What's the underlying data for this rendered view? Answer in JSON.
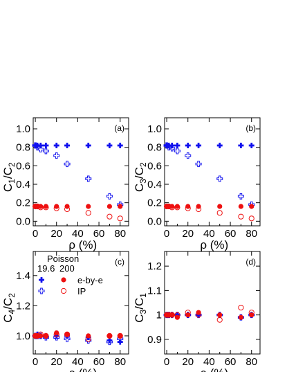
{
  "colors": {
    "blue": "#1010ee",
    "red": "#ee1010"
  },
  "legend": {
    "title": "Poisson",
    "col_left": "19.6",
    "col_right": "200",
    "row1": "e-by-e",
    "row2": "IP"
  },
  "chart_data": [
    {
      "type": "scatter",
      "panel_label": "(a)",
      "xlabel": "ρ (%)",
      "ylabel": "C1/C2",
      "ylabel_parts": [
        "C",
        "1",
        "/C",
        "2"
      ],
      "xlim": [
        -2,
        88
      ],
      "ylim": [
        -0.05,
        1.12
      ],
      "xticks": [
        0,
        20,
        40,
        60,
        80
      ],
      "yticks": [
        0.0,
        0.2,
        0.4,
        0.6,
        0.8,
        1.0
      ],
      "ytick_labels": [
        "0.0",
        "0.2",
        "0.4",
        "0.6",
        "0.8",
        "1.0"
      ],
      "series": [
        {
          "name": "19.6 e-by-e",
          "marker": "plus-filled",
          "color": "blue",
          "x": [
            0,
            2,
            5,
            10,
            20,
            30,
            50,
            70,
            80
          ],
          "y": [
            0.82,
            0.82,
            0.82,
            0.82,
            0.82,
            0.82,
            0.82,
            0.82,
            0.82
          ]
        },
        {
          "name": "19.6 IP",
          "marker": "plus-open",
          "color": "blue",
          "x": [
            0,
            2,
            5,
            10,
            20,
            30,
            50,
            70,
            80
          ],
          "y": [
            0.82,
            0.8,
            0.78,
            0.76,
            0.71,
            0.62,
            0.46,
            0.27,
            0.18
          ]
        },
        {
          "name": "200 e-by-e",
          "marker": "circle-filled",
          "color": "red",
          "x": [
            0,
            2,
            5,
            10,
            20,
            30,
            50,
            70,
            80
          ],
          "y": [
            0.16,
            0.16,
            0.16,
            0.16,
            0.16,
            0.16,
            0.16,
            0.16,
            0.16
          ]
        },
        {
          "name": "200 IP",
          "marker": "circle-open",
          "color": "red",
          "x": [
            0,
            2,
            5,
            10,
            20,
            30,
            50,
            70,
            80
          ],
          "y": [
            0.16,
            0.16,
            0.15,
            0.15,
            0.14,
            0.13,
            0.09,
            0.05,
            0.03
          ]
        }
      ]
    },
    {
      "type": "scatter",
      "panel_label": "(b)",
      "xlabel": "ρ (%)",
      "ylabel": "C3/C2",
      "ylabel_parts": [
        "C",
        "3",
        "/C",
        "2"
      ],
      "xlim": [
        -2,
        88
      ],
      "ylim": [
        -0.05,
        1.12
      ],
      "xticks": [
        0,
        20,
        40,
        60,
        80
      ],
      "yticks": [
        0.0,
        0.2,
        0.4,
        0.6,
        0.8,
        1.0
      ],
      "ytick_labels": [
        "0.0",
        "0.2",
        "0.4",
        "0.6",
        "0.8",
        "1.0"
      ],
      "series": [
        {
          "name": "19.6 e-by-e",
          "marker": "plus-filled",
          "color": "blue",
          "x": [
            0,
            2,
            5,
            10,
            20,
            30,
            50,
            70,
            80
          ],
          "y": [
            0.82,
            0.82,
            0.82,
            0.82,
            0.82,
            0.82,
            0.82,
            0.82,
            0.82
          ]
        },
        {
          "name": "19.6 IP",
          "marker": "plus-open",
          "color": "blue",
          "x": [
            0,
            2,
            5,
            10,
            20,
            30,
            50,
            70,
            80
          ],
          "y": [
            0.82,
            0.8,
            0.79,
            0.76,
            0.71,
            0.62,
            0.46,
            0.27,
            0.18
          ]
        },
        {
          "name": "200 e-by-e",
          "marker": "circle-filled",
          "color": "red",
          "x": [
            0,
            2,
            5,
            10,
            20,
            30,
            50,
            70,
            80
          ],
          "y": [
            0.16,
            0.16,
            0.16,
            0.16,
            0.16,
            0.16,
            0.16,
            0.16,
            0.16
          ]
        },
        {
          "name": "200 IP",
          "marker": "circle-open",
          "color": "red",
          "x": [
            0,
            2,
            5,
            10,
            20,
            30,
            50,
            70,
            80
          ],
          "y": [
            0.16,
            0.16,
            0.15,
            0.15,
            0.14,
            0.13,
            0.09,
            0.05,
            0.03
          ]
        }
      ]
    },
    {
      "type": "scatter",
      "panel_label": "(c)",
      "xlabel": "ρ (%)",
      "ylabel": "C4/C2",
      "ylabel_parts": [
        "C",
        "4",
        "/C",
        "2"
      ],
      "xlim": [
        -2,
        88
      ],
      "ylim": [
        0.88,
        1.56
      ],
      "xticks": [
        0,
        20,
        40,
        60,
        80
      ],
      "yticks": [
        1.0,
        1.2,
        1.4
      ],
      "ytick_labels": [
        "1.0",
        "1.2",
        "1.4"
      ],
      "series": [
        {
          "name": "19.6 e-by-e",
          "marker": "plus-filled",
          "color": "blue",
          "x": [
            0,
            2,
            5,
            10,
            20,
            30,
            50,
            70,
            80
          ],
          "y": [
            1.0,
            1.01,
            1.0,
            1.0,
            1.0,
            1.0,
            0.99,
            0.97,
            0.96
          ]
        },
        {
          "name": "19.6 IP",
          "marker": "plus-open",
          "color": "blue",
          "x": [
            0,
            2,
            5,
            10,
            20,
            30,
            50,
            70,
            80
          ],
          "y": [
            1.0,
            1.0,
            1.0,
            0.99,
            0.99,
            0.98,
            0.97,
            0.96,
            0.98
          ]
        },
        {
          "name": "200 e-by-e",
          "marker": "circle-filled",
          "color": "red",
          "x": [
            0,
            2,
            5,
            10,
            20,
            30,
            50,
            70,
            80
          ],
          "y": [
            1.0,
            1.0,
            1.0,
            1.0,
            1.02,
            1.01,
            1.0,
            1.0,
            1.0
          ]
        },
        {
          "name": "200 IP",
          "marker": "circle-open",
          "color": "red",
          "x": [
            0,
            2,
            5,
            10,
            20,
            30,
            50,
            70,
            80
          ],
          "y": [
            1.0,
            1.0,
            1.01,
            1.0,
            1.01,
            1.01,
            0.98,
            1.0,
            1.0
          ]
        }
      ]
    },
    {
      "type": "scatter",
      "panel_label": "(d)",
      "xlabel": "ρ (%)",
      "ylabel": "C3/C1",
      "ylabel_parts": [
        "C",
        "3",
        "/C",
        "1"
      ],
      "xlim": [
        -2,
        88
      ],
      "ylim": [
        0.84,
        1.26
      ],
      "xticks": [
        0,
        20,
        40,
        60,
        80
      ],
      "yticks": [
        0.9,
        1.0,
        1.1,
        1.2
      ],
      "ytick_labels": [
        "0.9",
        "1",
        "1.1",
        "1.2"
      ],
      "series": [
        {
          "name": "19.6 e-by-e",
          "marker": "plus-filled",
          "color": "blue",
          "x": [
            0,
            2,
            5,
            10,
            20,
            30,
            50,
            70,
            80
          ],
          "y": [
            1.0,
            1.0,
            1.0,
            1.0,
            1.0,
            1.0,
            1.0,
            0.99,
            1.0
          ]
        },
        {
          "name": "19.6 IP",
          "marker": "plus-open",
          "color": "blue",
          "x": [
            0,
            2,
            5,
            10,
            20,
            30,
            50,
            70,
            80
          ],
          "y": [
            1.0,
            1.0,
            1.0,
            1.0,
            1.0,
            1.0,
            1.0,
            0.99,
            1.0
          ]
        },
        {
          "name": "200 e-by-e",
          "marker": "circle-filled",
          "color": "red",
          "x": [
            0,
            2,
            5,
            10,
            20,
            30,
            50,
            70,
            80
          ],
          "y": [
            1.0,
            1.0,
            1.0,
            0.99,
            1.0,
            1.01,
            1.0,
            0.99,
            1.0
          ]
        },
        {
          "name": "200 IP",
          "marker": "circle-open",
          "color": "red",
          "x": [
            0,
            2,
            5,
            10,
            20,
            30,
            50,
            70,
            80
          ],
          "y": [
            1.0,
            1.0,
            1.0,
            1.0,
            1.01,
            1.0,
            0.98,
            1.03,
            1.01
          ]
        }
      ]
    }
  ]
}
